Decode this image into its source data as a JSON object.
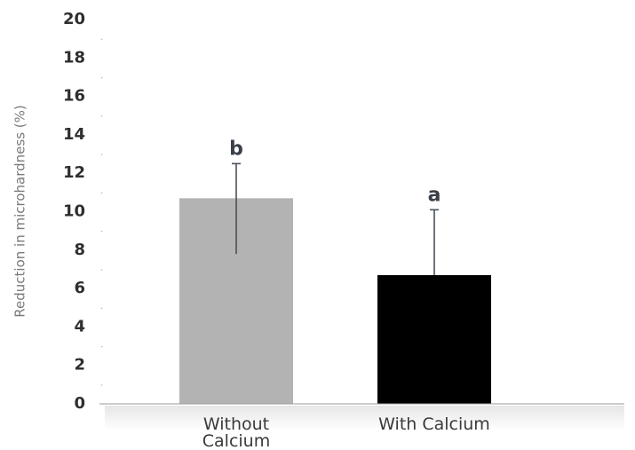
{
  "chart_data": {
    "type": "bar",
    "categories": [
      "Without\nCalcium",
      "With Calcium"
    ],
    "values": [
      10.7,
      6.7
    ],
    "error_upper": [
      12.5,
      10.1
    ],
    "error_lower": [
      7.8,
      6.7
    ],
    "significance_labels": [
      "b",
      "a"
    ],
    "bar_colors": [
      "#b3b3b3",
      "#000000"
    ],
    "ylabel": "Reduction in microhardness (%)",
    "xlabel": "",
    "ylim": [
      0,
      20
    ],
    "yticks": [
      0,
      2,
      4,
      6,
      8,
      10,
      12,
      14,
      16,
      18,
      20
    ],
    "grid": false
  }
}
